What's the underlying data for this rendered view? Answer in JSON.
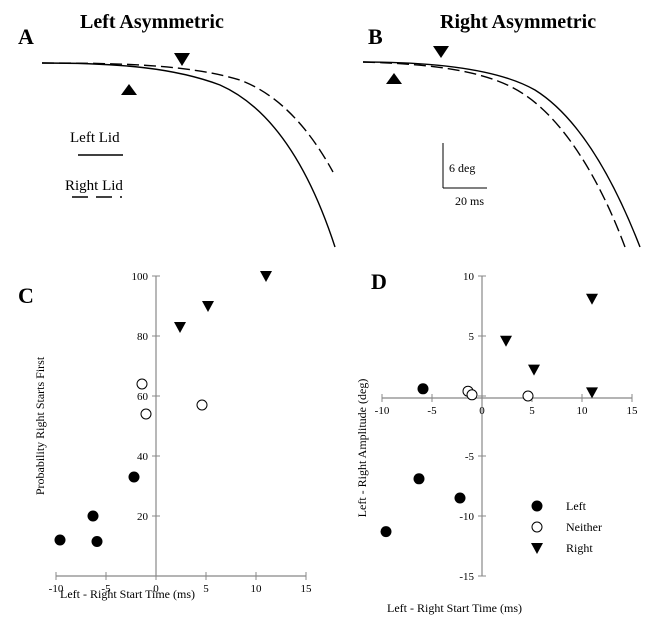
{
  "panels": {
    "a": {
      "letter": "A",
      "title": "Left Asymmetric"
    },
    "b": {
      "letter": "B",
      "title": "Right Asymmetric"
    },
    "c": {
      "letter": "C"
    },
    "d": {
      "letter": "D"
    }
  },
  "traces_legend": {
    "left_lid": "Left Lid",
    "right_lid": "Right Lid"
  },
  "scale_bar": {
    "vertical_label": "6 deg",
    "horizontal_label": "20 ms"
  },
  "chart_data": [
    {
      "panel": "C",
      "type": "scatter",
      "xlabel": "Left - Right Start Time (ms)",
      "ylabel": "Probability Right Starts First",
      "xlim": [
        -10,
        15
      ],
      "ylim": [
        0,
        100
      ],
      "xticks": [
        -10,
        -5,
        0,
        5,
        10,
        15
      ],
      "yticks": [
        20,
        40,
        60,
        80,
        100
      ],
      "series": [
        {
          "key": "left",
          "points": [
            [
              -9.6,
              12
            ],
            [
              -6.3,
              20
            ],
            [
              -5.9,
              11.5
            ],
            [
              -2.2,
              33
            ]
          ]
        },
        {
          "key": "neither",
          "points": [
            [
              -1.4,
              64
            ],
            [
              -1.0,
              54
            ],
            [
              4.6,
              57
            ]
          ]
        },
        {
          "key": "right",
          "points": [
            [
              2.4,
              83
            ],
            [
              5.2,
              90
            ],
            [
              11.0,
              100
            ]
          ]
        }
      ]
    },
    {
      "panel": "D",
      "type": "scatter",
      "xlabel": "Left - Right Start Time (ms)",
      "ylabel": "Left - Right Amplitude (deg)",
      "xlim": [
        -10,
        15
      ],
      "ylim": [
        -15,
        10
      ],
      "xticks": [
        -10,
        -5,
        0,
        5,
        10,
        15
      ],
      "yticks": [
        -15,
        -10,
        -5,
        0,
        5,
        10
      ],
      "series": [
        {
          "key": "left",
          "name": "Left",
          "points": [
            [
              -9.6,
              -11.3
            ],
            [
              -6.3,
              -6.9
            ],
            [
              -5.9,
              0.6
            ],
            [
              -2.2,
              -8.5
            ]
          ]
        },
        {
          "key": "neither",
          "name": "Neither",
          "points": [
            [
              -1.4,
              0.4
            ],
            [
              -1.0,
              0.1
            ],
            [
              4.6,
              0.0
            ]
          ]
        },
        {
          "key": "right",
          "name": "Right",
          "points": [
            [
              2.4,
              4.6
            ],
            [
              5.2,
              2.2
            ],
            [
              11.0,
              8.1
            ],
            [
              11.0,
              0.3
            ]
          ]
        }
      ]
    }
  ]
}
